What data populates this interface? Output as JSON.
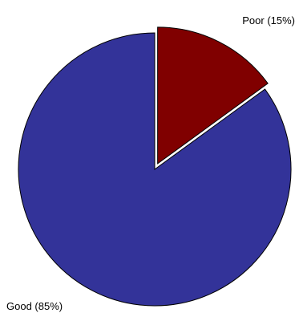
{
  "chart_data": {
    "type": "pie",
    "title": "",
    "slices": [
      {
        "label": "Good  (85%)",
        "value": 85,
        "color": "#333399",
        "exploded": false
      },
      {
        "label": "Poor  (15%)",
        "value": 15,
        "color": "#800000",
        "exploded": true
      }
    ],
    "start": "12 o'clock",
    "direction": "counterclockwise for Good, Poor occupies the clockwise wedge from 12 o'clock",
    "outline_color": "#000000"
  }
}
